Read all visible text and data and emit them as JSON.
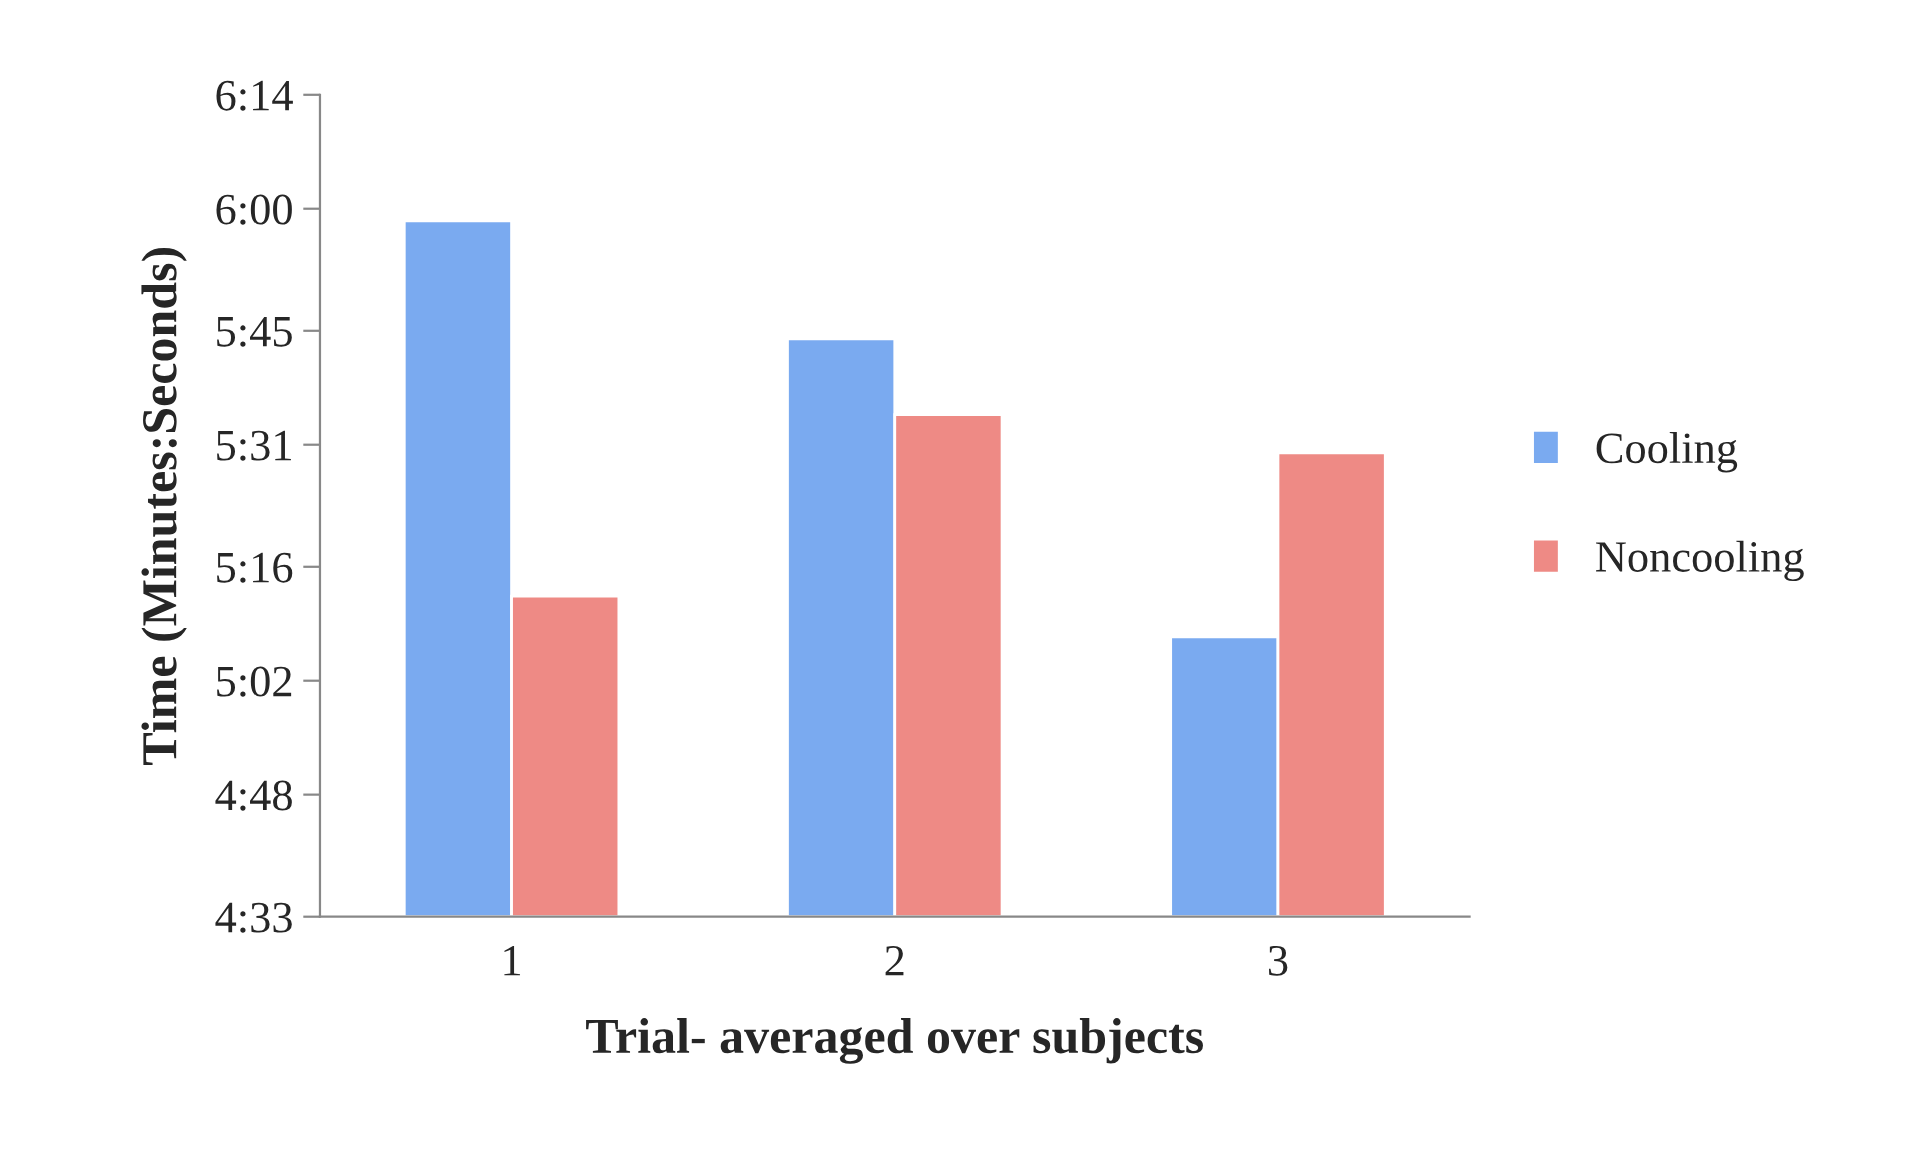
{
  "chart_data": {
    "type": "bar",
    "xlabel": "Trial- averaged over subjects",
    "ylabel": "Time (Minutes:Seconds)",
    "categories": [
      "1",
      "2",
      "3"
    ],
    "series": [
      {
        "name": "Cooling",
        "color": "#7aaaf0",
        "values": [
          358.5,
          344.0,
          307.4
        ]
      },
      {
        "name": "Noncooling",
        "color": "#ee8a85",
        "values": [
          312.4,
          334.7,
          330.0
        ]
      }
    ],
    "ylim": [
      273,
      374
    ],
    "yticks": [
      {
        "value": 273,
        "label": "4:33"
      },
      {
        "value": 288,
        "label": "4:48"
      },
      {
        "value": 302,
        "label": "5:02"
      },
      {
        "value": 316,
        "label": "5:16"
      },
      {
        "value": 331,
        "label": "5:31"
      },
      {
        "value": 345,
        "label": "5:45"
      },
      {
        "value": 360,
        "label": "6:00"
      },
      {
        "value": 374,
        "label": "6:14"
      }
    ],
    "legend": "right",
    "grid": false
  }
}
